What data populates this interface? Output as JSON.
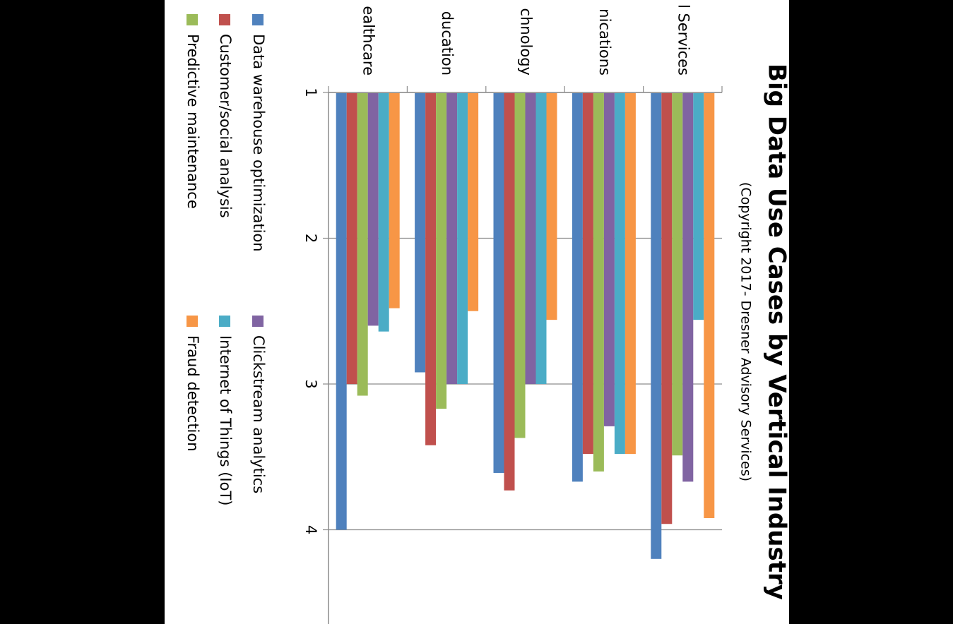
{
  "chart_data": {
    "type": "bar",
    "orientation": "horizontal",
    "title": "Big Data Use Cases by Vertical Industry",
    "subtitle": "(Copyright 2017- Dresner Advisory Services)",
    "categories": [
      "Healthcare",
      "Education",
      "Technology",
      "Telecommunications",
      "Financial Services"
    ],
    "category_labels_visible": [
      "ealthcare",
      "ducation",
      "chnology",
      "nications",
      "l Services"
    ],
    "xlim": [
      1,
      4.6
    ],
    "xticks": [
      1,
      2,
      3,
      4
    ],
    "grid": true,
    "legend_position": "bottom",
    "series": [
      {
        "name": "Data warehouse optimization",
        "color": "#4F81BD",
        "values": [
          4.0,
          2.92,
          3.61,
          3.67,
          4.2
        ]
      },
      {
        "name": "Customer/social analysis",
        "color": "#C0504D",
        "values": [
          3.0,
          3.42,
          3.73,
          3.48,
          3.96
        ]
      },
      {
        "name": "Predictive maintenance",
        "color": "#9BBB59",
        "values": [
          3.08,
          3.17,
          3.37,
          3.6,
          3.49
        ]
      },
      {
        "name": "Clickstream analytics",
        "color": "#8064A2",
        "values": [
          2.6,
          3.0,
          3.0,
          3.29,
          3.67
        ]
      },
      {
        "name": "Internet of Things (IoT)",
        "color": "#4BACC6",
        "values": [
          2.64,
          3.0,
          3.0,
          3.48,
          2.56
        ]
      },
      {
        "name": "Fraud detection",
        "color": "#F79646",
        "values": [
          2.48,
          2.5,
          2.56,
          3.48,
          3.92
        ]
      }
    ]
  }
}
